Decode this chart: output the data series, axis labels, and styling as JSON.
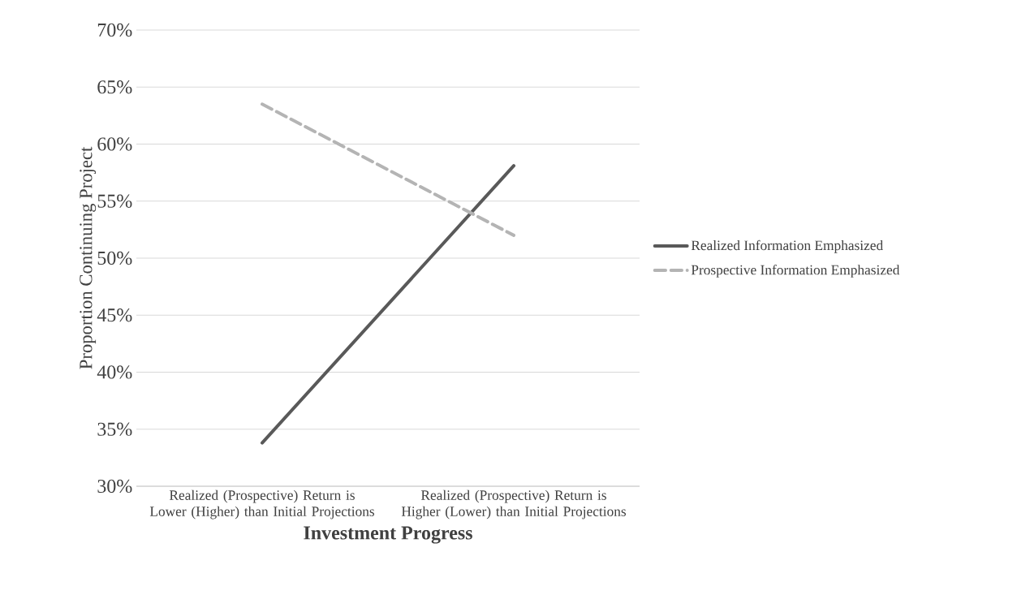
{
  "chart_data": {
    "type": "line",
    "xlabel": "Investment Progress",
    "ylabel": "Proportion Continuing Project",
    "categories": [
      "Realized (Prospective) Return is Lower (Higher) than Initial Projections",
      "Realized (Prospective) Return is Higher (Lower) than Initial Projections"
    ],
    "series": [
      {
        "name": "Realized Information Emphasized",
        "color": "#595959",
        "values": [
          33.8,
          58.1
        ],
        "line_style": "solid"
      },
      {
        "name": "Prospective Information Emphasized",
        "color": "#b4b4b4",
        "values": [
          63.5,
          52.0
        ],
        "line_style": "dashed"
      }
    ],
    "ylim": [
      30,
      70
    ],
    "yticks": [
      {
        "value": 30,
        "label": "30%"
      },
      {
        "value": 35,
        "label": "35%"
      },
      {
        "value": 40,
        "label": "40%"
      },
      {
        "value": 45,
        "label": "45%"
      },
      {
        "value": 50,
        "label": "50%"
      },
      {
        "value": 55,
        "label": "55%"
      },
      {
        "value": 60,
        "label": "60%"
      },
      {
        "value": 65,
        "label": "65%"
      },
      {
        "value": 70,
        "label": "70%"
      }
    ],
    "grid": "y",
    "legend": "right",
    "marker": "none"
  }
}
